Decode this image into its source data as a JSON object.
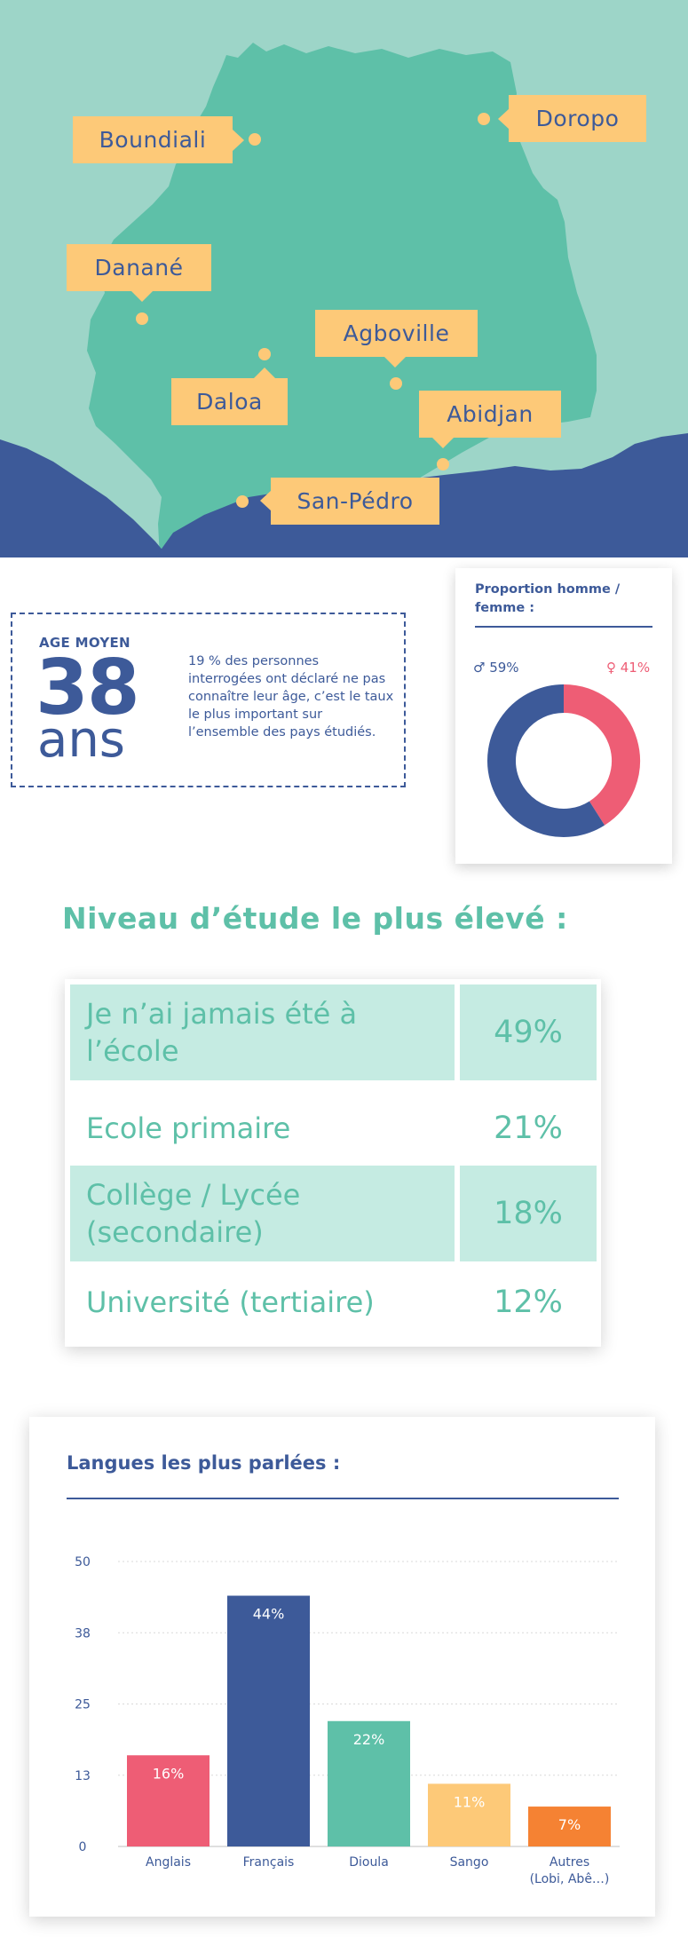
{
  "map": {
    "colors": {
      "sea": "#9dd5c8",
      "land": "#5ec0a8",
      "ocean": "#3d5a99",
      "label": "#fdc978"
    },
    "cities": [
      {
        "name": "Boundiali"
      },
      {
        "name": "Doropo"
      },
      {
        "name": "Danané"
      },
      {
        "name": "Agboville"
      },
      {
        "name": "Daloa"
      },
      {
        "name": "Abidjan"
      },
      {
        "name": "San-Pédro"
      }
    ]
  },
  "age": {
    "label": "AGE MOYEN",
    "value": "38",
    "unit": "ans",
    "note": "19 % des personnes interrogées ont déclaré ne pas connaître leur âge, c’est le taux le plus important sur l’ensemble des pays étudiés."
  },
  "gender": {
    "title": "Proportion homme / femme :",
    "male_label": "♂ 59%",
    "female_label": "♀ 41%",
    "male_value": 59,
    "female_value": 41,
    "male_color": "#3d5a99",
    "female_color": "#ee5d75"
  },
  "education": {
    "title": "Niveau d’étude le plus élevé :",
    "rows": [
      {
        "label": "Je n’ai jamais été à l’école",
        "percent": "49%"
      },
      {
        "label": "Ecole primaire",
        "percent": "21%"
      },
      {
        "label": "Collège / Lycée (secondaire)",
        "percent": "18%"
      },
      {
        "label": "Université (tertiaire)",
        "percent": "12%"
      }
    ]
  },
  "chart_data": {
    "type": "bar",
    "title": "Langues les plus parlées :",
    "categories": [
      "Anglais",
      "Français",
      "Dioula",
      "Sango",
      "Autres (Lobi, Abê…)"
    ],
    "category_lines": [
      [
        "Anglais"
      ],
      [
        "Français"
      ],
      [
        "Dioula"
      ],
      [
        "Sango"
      ],
      [
        "Autres",
        "(Lobi, Abê…)"
      ]
    ],
    "values": [
      16,
      44,
      22,
      11,
      7
    ],
    "data_labels": [
      "16%",
      "44%",
      "22%",
      "11%",
      "7%"
    ],
    "colors": [
      "#ee5d75",
      "#3d5a99",
      "#5ec0a8",
      "#fdc978",
      "#f58233"
    ],
    "label_colors": [
      "#ffffff",
      "#ffffff",
      "#ffffff",
      "#ffffff",
      "#ffffff"
    ],
    "yticks": [
      "0",
      "13",
      "25",
      "38",
      "50"
    ],
    "ytick_values": [
      0,
      12.5,
      25,
      37.5,
      50
    ],
    "ylim": [
      0,
      50
    ],
    "grid": true
  }
}
